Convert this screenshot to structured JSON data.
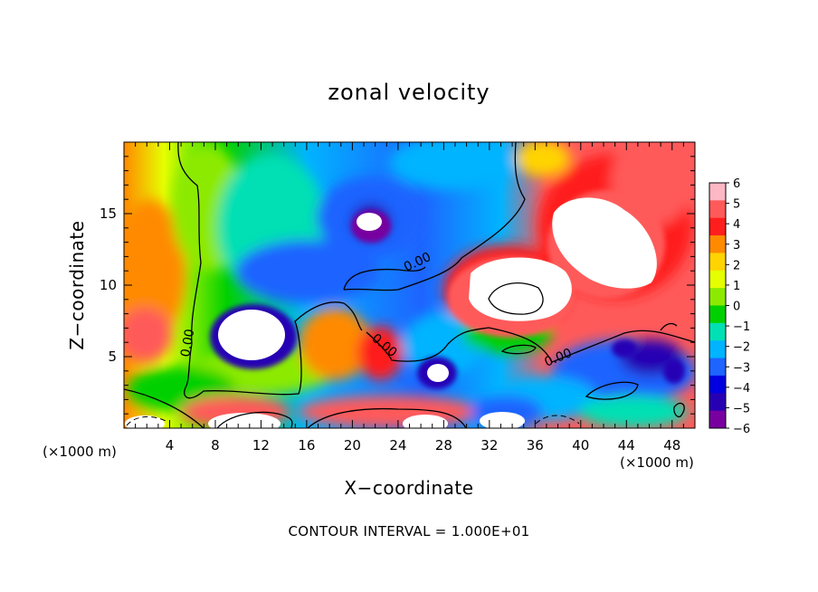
{
  "chart_data": {
    "type": "heatmap",
    "title": "zonal velocity",
    "xlabel": "X−coordinate",
    "ylabel": "Z−coordinate",
    "x_unit": "(×1000 m)",
    "z_unit": "(×1000 m)",
    "xlim": [
      0,
      50
    ],
    "ylim": [
      0,
      20
    ],
    "x_ticks": [
      "4",
      "8",
      "12",
      "16",
      "20",
      "24",
      "28",
      "32",
      "36",
      "40",
      "44",
      "48"
    ],
    "y_ticks": [
      "5",
      "10",
      "15"
    ],
    "colorbar": {
      "min": -6,
      "max": 6,
      "tick_labels": [
        "6",
        "5",
        "4",
        "3",
        "2",
        "1",
        "0",
        "−1",
        "−2",
        "−3",
        "−4",
        "−5",
        "−6"
      ],
      "colors": [
        "#fcb8c4",
        "#ff5a5a",
        "#ff1e1e",
        "#ff8a00",
        "#ffd400",
        "#e6ff00",
        "#8cea00",
        "#00d000",
        "#00e0b4",
        "#00b4ff",
        "#1e64ff",
        "#0000e0",
        "#2800b4",
        "#7800a0"
      ]
    },
    "contour_labels": [
      "0.00",
      "0.00",
      "0.00",
      "0.00"
    ],
    "contour_interval_text": "CONTOUR INTERVAL = 1.000E+01"
  }
}
